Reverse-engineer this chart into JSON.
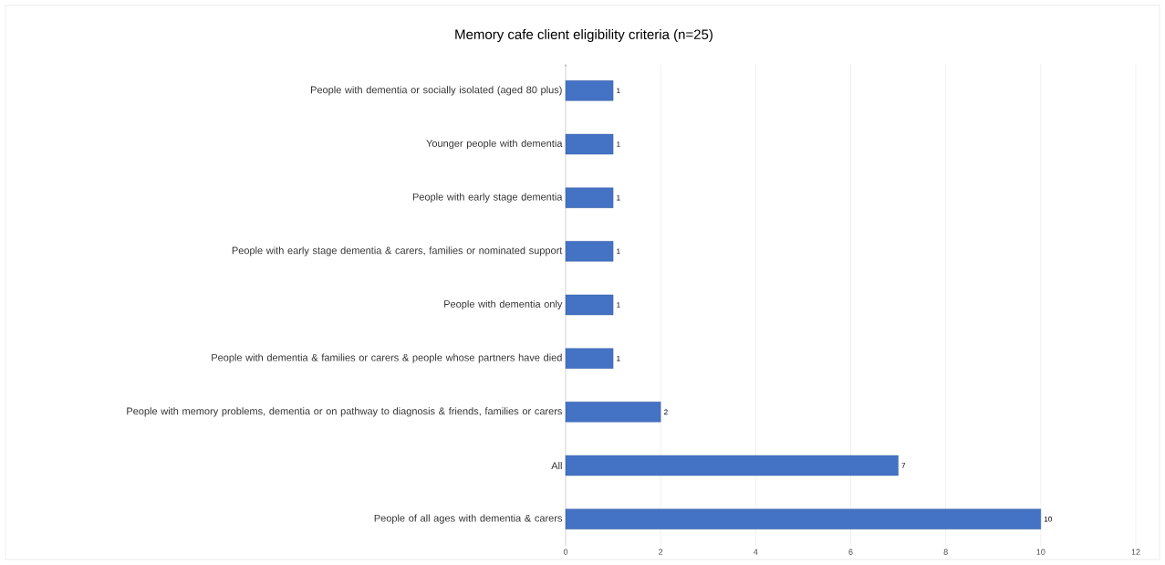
{
  "chart_data": {
    "type": "bar",
    "orientation": "horizontal",
    "title": "Memory cafe client eligibility criteria (n=25)",
    "categories": [
      "People with dementia or socially isolated (aged 80 plus)",
      "Younger people with dementia",
      "People with early stage dementia",
      "People with early stage dementia & carers, families or nominated support",
      "People with dementia only",
      "People with dementia & families or carers & people whose partners have died",
      "People with memory problems, dementia or on pathway to diagnosis & friends, families or carers",
      "All",
      "People of all ages with dementia & carers"
    ],
    "values": [
      1,
      1,
      1,
      1,
      1,
      1,
      2,
      7,
      10
    ],
    "color": "#4472c4",
    "xlim": [
      0,
      12
    ],
    "xticks": [
      0,
      2,
      4,
      6,
      8,
      10,
      12
    ],
    "grid": "x",
    "data_labels": true
  }
}
